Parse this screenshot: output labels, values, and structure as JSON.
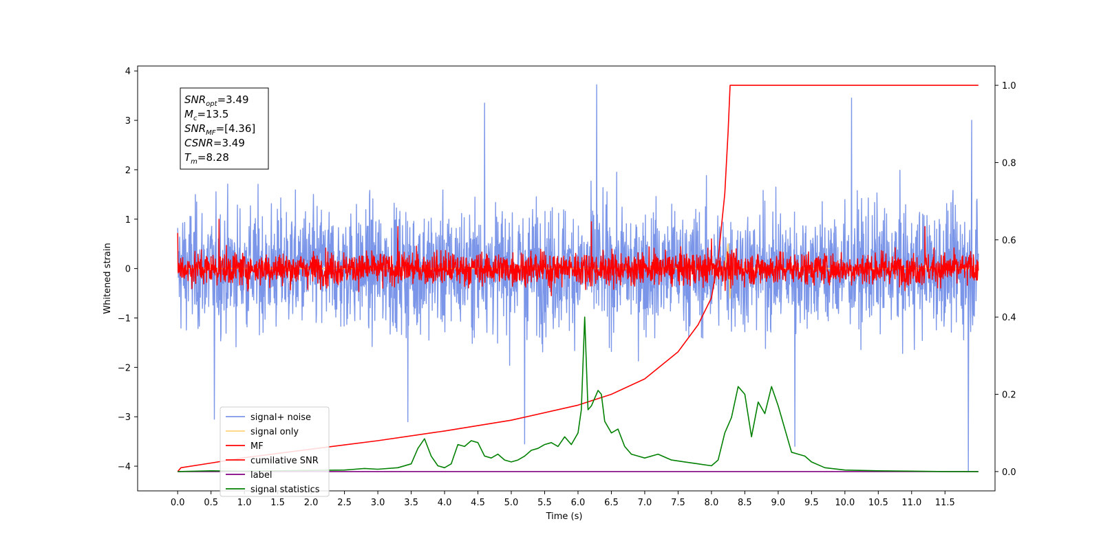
{
  "chart_data": {
    "type": "line",
    "xlabel": "Time (s)",
    "ylabel": "Whitened strain",
    "xlim": [
      -0.6,
      12.25
    ],
    "ylim_left": [
      -4.5,
      4.1
    ],
    "ylim_right": [
      -0.05,
      1.05
    ],
    "x_ticks": [
      "0.0",
      "0.5",
      "1.0",
      "1.5",
      "2.0",
      "2.5",
      "3.0",
      "3.5",
      "4.0",
      "4.5",
      "5.0",
      "5.5",
      "6.0",
      "6.5",
      "7.0",
      "7.5",
      "8.0",
      "8.5",
      "9.0",
      "9.5",
      "10.0",
      "10.5",
      "11.0",
      "11.5"
    ],
    "y_ticks_left": [
      "4",
      "3",
      "2",
      "1",
      "0",
      "−1",
      "−2",
      "−3",
      "−4"
    ],
    "y_ticks_right": [
      "0.0",
      "0.2",
      "0.4",
      "0.6",
      "0.8",
      "1.0"
    ],
    "grid": false,
    "legend_position": "lower-left",
    "annotation": {
      "lines": [
        {
          "base": "SNR",
          "sub": "opt",
          "value": "=3.49"
        },
        {
          "base": "M",
          "sub": "c",
          "value": "=13.5"
        },
        {
          "base": "SNR",
          "sub": "MF",
          "value": "=[4.36]"
        },
        {
          "base": "CSNR",
          "sub": "",
          "value": "=3.49"
        },
        {
          "base": "T",
          "sub": "m",
          "value": "=8.28"
        }
      ]
    },
    "series": [
      {
        "name": "signal+ noise",
        "color": "#7b96e8",
        "axis": "left",
        "kind": "noise",
        "spread": 1.05,
        "x_range": [
          0,
          12.0
        ],
        "spikes": [
          [
            6.28,
            3.72
          ],
          [
            11.85,
            -4.1
          ],
          [
            9.25,
            -3.6
          ],
          [
            5.2,
            -3.55
          ],
          [
            0.55,
            -3.05
          ],
          [
            3.45,
            -3.1
          ],
          [
            11.9,
            3.0
          ],
          [
            10.1,
            3.45
          ],
          [
            4.6,
            3.35
          ]
        ]
      },
      {
        "name": "signal only",
        "color": "#ffd27a",
        "axis": "left",
        "kind": "flat",
        "x": [
          0,
          8.2,
          8.25,
          8.28,
          8.3,
          12.0
        ],
        "y": [
          0,
          0,
          0.5,
          -0.6,
          0,
          0
        ]
      },
      {
        "name": "MF",
        "color": "#ff0000",
        "axis": "left",
        "kind": "noise",
        "spread": 0.28,
        "x_range": [
          0,
          12.0
        ],
        "spikes": [
          [
            0.0,
            0.72
          ],
          [
            0.62,
            1.0
          ],
          [
            3.3,
            0.85
          ],
          [
            6.2,
            0.95
          ],
          [
            11.2,
            0.85
          ],
          [
            5.6,
            -0.55
          ],
          [
            8.0,
            0.6
          ]
        ]
      },
      {
        "name": "cumilative SNR",
        "color": "#ff0000",
        "axis": "right",
        "kind": "curve",
        "x": [
          0.0,
          0.05,
          0.5,
          1.0,
          2.0,
          3.0,
          4.0,
          5.0,
          6.0,
          6.5,
          7.0,
          7.5,
          7.8,
          8.0,
          8.1,
          8.2,
          8.25,
          8.28,
          8.5,
          9.0,
          10.0,
          11.0,
          12.0
        ],
        "y": [
          0.0,
          0.01,
          0.022,
          0.036,
          0.058,
          0.08,
          0.105,
          0.133,
          0.172,
          0.2,
          0.24,
          0.31,
          0.38,
          0.45,
          0.55,
          0.72,
          0.88,
          1.0,
          1.0,
          1.0,
          1.0,
          1.0,
          1.0
        ]
      },
      {
        "name": "label",
        "color": "#800080",
        "axis": "right",
        "kind": "curve",
        "x": [
          0.0,
          12.0
        ],
        "y": [
          0.0,
          0.0
        ]
      },
      {
        "name": "signal statistics",
        "color": "#008000",
        "axis": "right",
        "kind": "curve",
        "x": [
          0.0,
          0.5,
          1.0,
          1.5,
          2.0,
          2.5,
          2.8,
          3.0,
          3.3,
          3.5,
          3.6,
          3.7,
          3.8,
          3.9,
          4.0,
          4.1,
          4.2,
          4.3,
          4.4,
          4.5,
          4.6,
          4.7,
          4.8,
          4.9,
          5.0,
          5.1,
          5.2,
          5.3,
          5.4,
          5.5,
          5.6,
          5.7,
          5.8,
          5.9,
          6.0,
          6.05,
          6.1,
          6.15,
          6.2,
          6.3,
          6.35,
          6.4,
          6.5,
          6.6,
          6.7,
          6.8,
          6.9,
          7.0,
          7.2,
          7.4,
          7.6,
          7.8,
          8.0,
          8.1,
          8.2,
          8.3,
          8.4,
          8.5,
          8.6,
          8.7,
          8.8,
          8.9,
          9.0,
          9.1,
          9.2,
          9.3,
          9.4,
          9.5,
          9.7,
          10.0,
          10.5,
          11.0,
          11.5,
          12.0
        ],
        "y": [
          0.0,
          0.002,
          0.001,
          0.002,
          0.003,
          0.004,
          0.008,
          0.006,
          0.01,
          0.02,
          0.06,
          0.085,
          0.04,
          0.015,
          0.01,
          0.02,
          0.07,
          0.065,
          0.08,
          0.075,
          0.04,
          0.035,
          0.045,
          0.03,
          0.025,
          0.03,
          0.04,
          0.055,
          0.06,
          0.07,
          0.075,
          0.065,
          0.09,
          0.07,
          0.1,
          0.16,
          0.4,
          0.16,
          0.17,
          0.21,
          0.2,
          0.13,
          0.1,
          0.11,
          0.065,
          0.045,
          0.04,
          0.035,
          0.045,
          0.03,
          0.025,
          0.02,
          0.015,
          0.03,
          0.1,
          0.14,
          0.22,
          0.2,
          0.09,
          0.18,
          0.15,
          0.22,
          0.17,
          0.11,
          0.05,
          0.045,
          0.04,
          0.025,
          0.01,
          0.004,
          0.002,
          0.001,
          0.0,
          0.0
        ]
      }
    ]
  }
}
